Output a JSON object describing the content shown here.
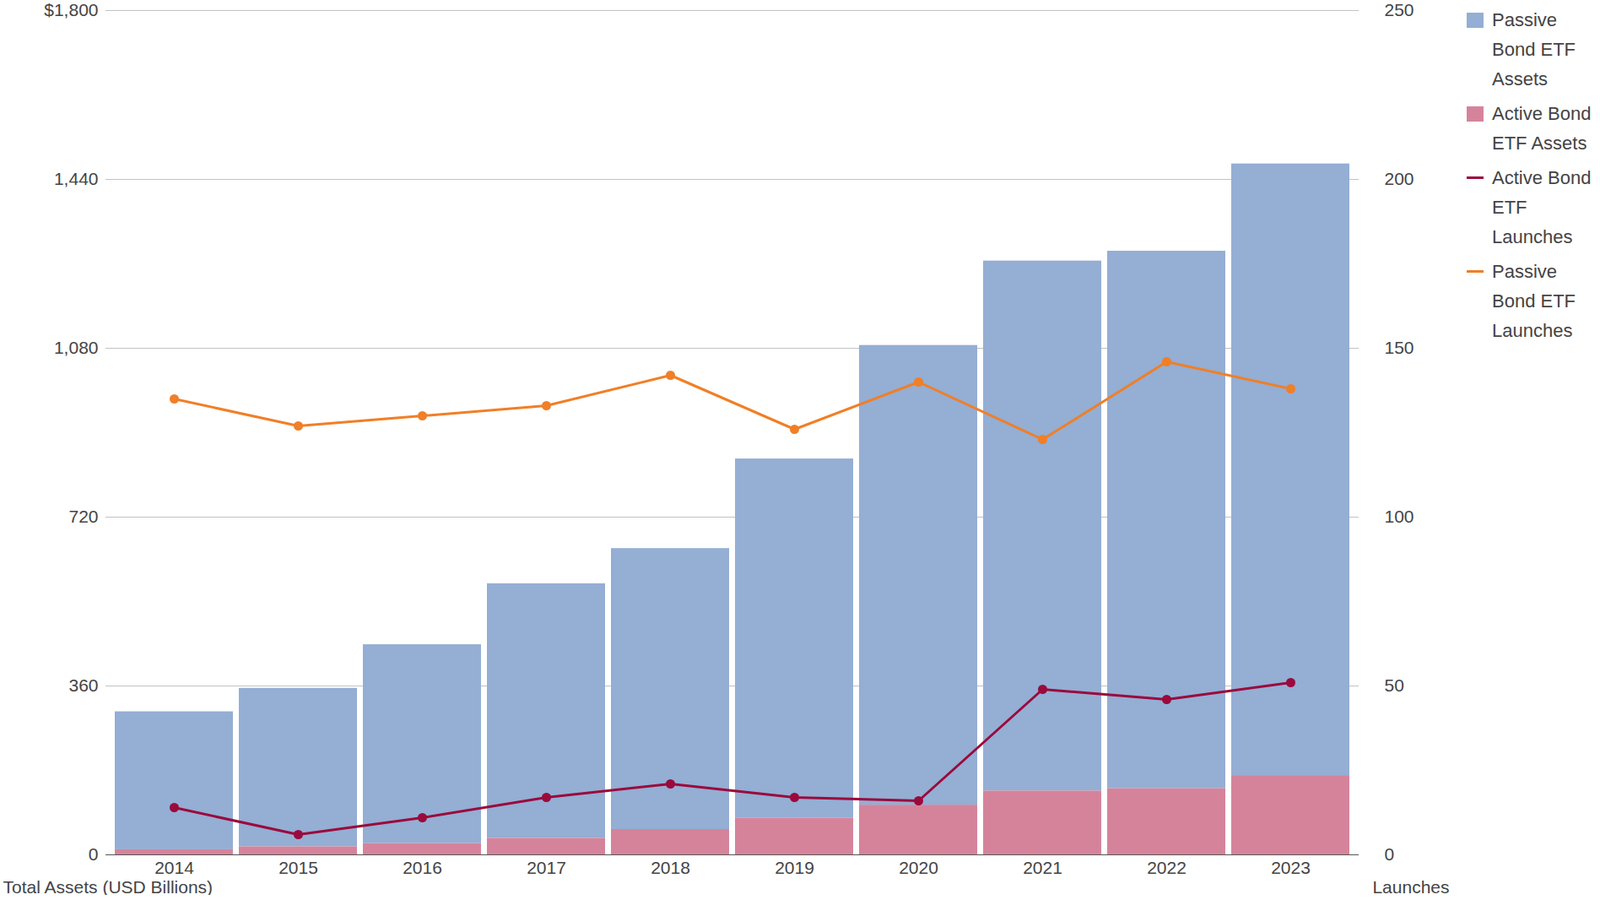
{
  "chart_data": {
    "type": "bar",
    "stacked": true,
    "grid": true,
    "legend": "top right",
    "y_label": "Total Assets (USD Billions)",
    "y2_label": "Launches",
    "categories": [
      "2014",
      "2015",
      "2016",
      "2017",
      "2018",
      "2019",
      "2020",
      "2021",
      "2022",
      "2023"
    ],
    "ylim": [
      0,
      1800
    ],
    "yticks": [
      0,
      360,
      720,
      {
        "value": 1080,
        "label": "1,080"
      },
      {
        "value": 1440,
        "label": "1,440"
      },
      {
        "value": 1800,
        "label": "$1,800"
      }
    ],
    "y2lim": [
      0,
      250
    ],
    "y2ticks": [
      0,
      50,
      100,
      150,
      200,
      250
    ],
    "series": [
      {
        "name": "Passive Bond ETF Assets",
        "type": "bar",
        "color": "#94aed4",
        "values": [
          294,
          338,
          424,
          543,
          599,
          766,
          980,
          1130,
          1146,
          1304
        ]
      },
      {
        "name": "Active Bond ETF Assets",
        "type": "bar",
        "color": "#d5839b",
        "values": [
          11,
          17,
          24,
          35,
          54,
          78,
          106,
          136,
          141,
          169
        ]
      },
      {
        "name": "Active Bond ETF Launches",
        "type": "line",
        "axis": "y2",
        "marker": "circle",
        "color": "#9b0a3c",
        "values": [
          14,
          6,
          11,
          17,
          21,
          17,
          16,
          49,
          46,
          51
        ]
      },
      {
        "name": "Passive Bond ETF Launches",
        "type": "line",
        "axis": "y2",
        "marker": "circle",
        "color": "#f07f27",
        "values": [
          135,
          127,
          130,
          133,
          142,
          126,
          140,
          123,
          146,
          138
        ]
      }
    ]
  }
}
